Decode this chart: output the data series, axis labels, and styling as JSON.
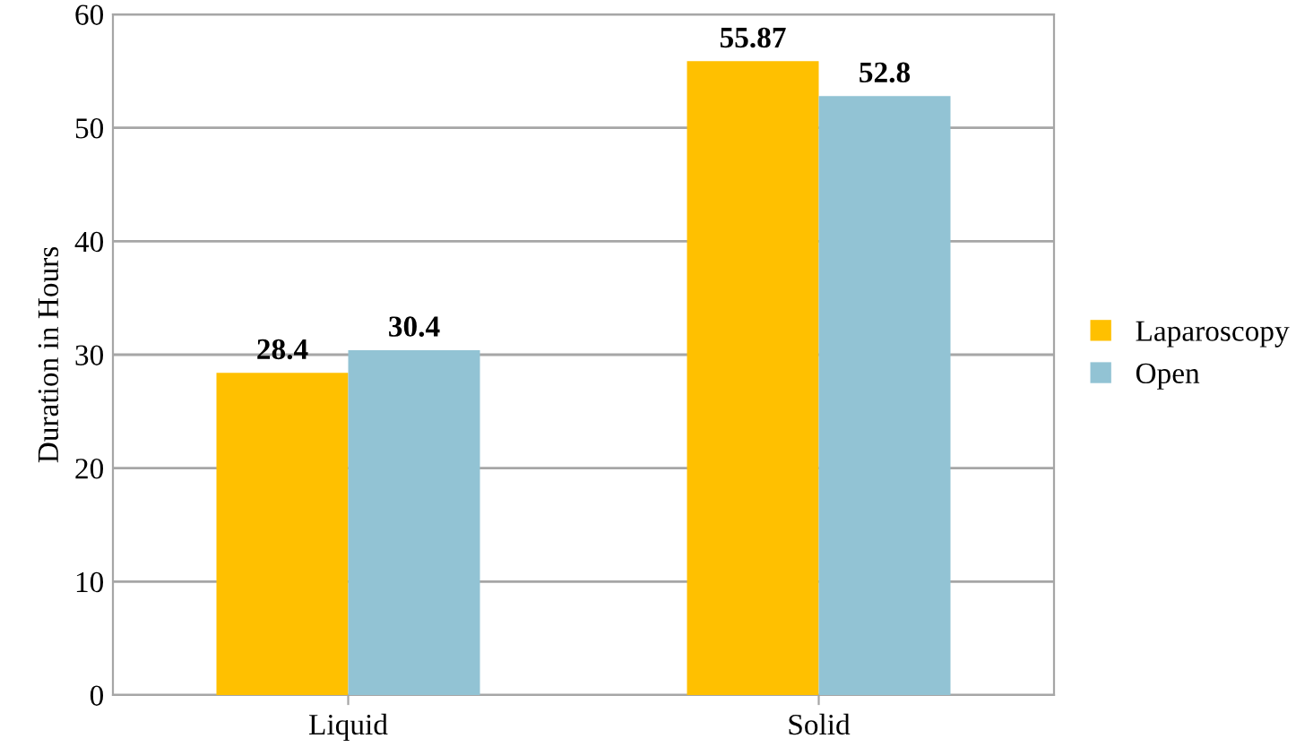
{
  "chart_data": {
    "type": "bar",
    "ylabel": "Duration in Hours",
    "categories": [
      "Liquid",
      "Solid"
    ],
    "series": [
      {
        "name": "Laparoscopy",
        "color": "#ffc000",
        "values": [
          28.4,
          55.87
        ]
      },
      {
        "name": "Open",
        "color": "#92c3d4",
        "values": [
          30.4,
          52.8
        ]
      }
    ],
    "ylim": [
      0,
      60
    ],
    "yticks": [
      0,
      10,
      20,
      30,
      40,
      50,
      60
    ],
    "grid": "y",
    "legend": "right",
    "data_labels": true
  }
}
